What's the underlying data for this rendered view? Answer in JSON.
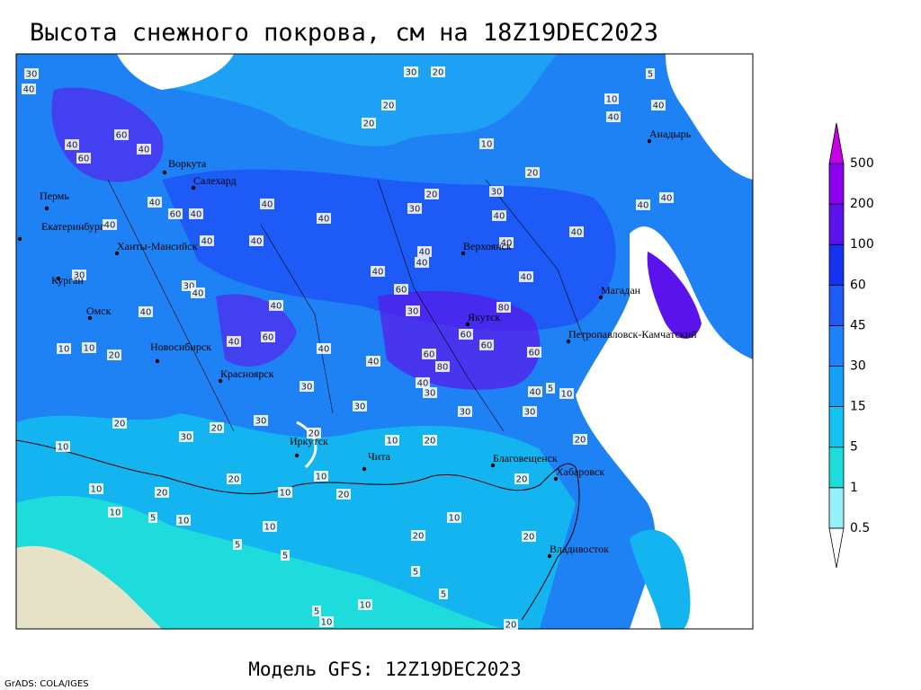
{
  "title": "Высота снежного покрова, см на 18Z19DEC2023",
  "footer": "Модель GFS: 12Z19DEC2023",
  "credit": "GrADS: COLA/IGES",
  "cities": [
    "Воркута",
    "Салехард",
    "Пермь",
    "Екатеринбург",
    "Ханты-Мансийск",
    "Курган",
    "Омск",
    "Новосибирск",
    "Красноярск",
    "Иркутск",
    "Чита",
    "Верхоянск",
    "Якутск",
    "Магадан",
    "Анадырь",
    "Петропавловск-Камчатский",
    "Благовещенск",
    "Хабаровск",
    "Владивосток"
  ],
  "contour_labels": [
    30,
    40,
    40,
    60,
    60,
    40,
    30,
    20,
    20,
    20,
    10,
    20,
    10,
    5,
    40,
    40,
    40,
    60,
    40,
    40,
    40,
    40,
    40,
    40,
    30,
    20,
    30,
    40,
    40,
    40,
    40,
    40,
    40,
    40,
    40,
    40,
    60,
    30,
    80,
    30,
    40,
    40,
    30,
    40,
    60,
    40,
    40,
    40,
    60,
    80,
    60,
    60,
    60,
    40,
    30,
    40,
    10,
    5,
    30,
    30,
    30,
    30,
    20,
    20,
    30,
    30,
    20,
    10,
    20,
    10,
    20,
    10,
    10,
    20,
    20,
    20,
    10,
    20,
    10,
    5,
    10,
    10,
    5,
    5,
    20,
    10,
    20,
    5,
    5,
    10,
    5,
    10,
    20,
    10,
    10,
    20
  ],
  "legend": {
    "levels": [
      0.5,
      1,
      5,
      15,
      30,
      45,
      60,
      100,
      200,
      500
    ],
    "colors": [
      "#ffffff",
      "#96f0fa",
      "#1edcdc",
      "#14c3f0",
      "#14a0f5",
      "#1e82ff",
      "#1e5af5",
      "#1432f0",
      "#5a14eb",
      "#8c00f0",
      "#c800e6"
    ]
  }
}
